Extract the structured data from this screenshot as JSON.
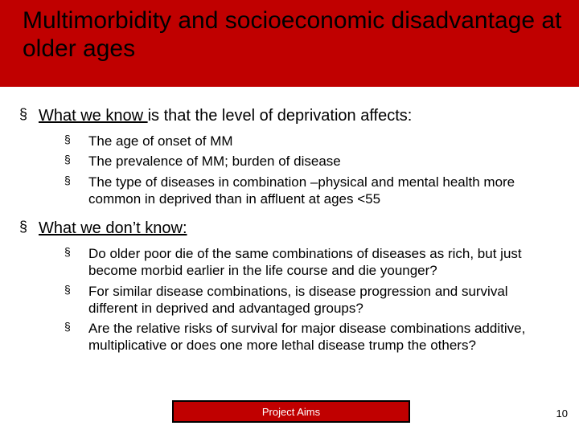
{
  "title": "Multimorbidity and socioeconomic disadvantage at older ages",
  "colors": {
    "band": "#c00000",
    "text": "#000000",
    "footer_text": "#ffffff",
    "background": "#ffffff"
  },
  "bullets": [
    {
      "lead_underlined": "What we know ",
      "tail": "is that the level of deprivation affects:",
      "sub": [
        "The age of onset of MM",
        "The prevalence of MM; burden of disease",
        "The type of diseases in combination –physical and mental health more common in deprived than in affluent at ages <55"
      ]
    },
    {
      "lead_underlined": "What we don’t know:",
      "tail": "",
      "sub": [
        "Do older poor die of the same combinations of diseases as rich, but just become morbid earlier in the life course and die younger?",
        "For similar disease combinations, is disease progression and survival different in deprived and advantaged groups?",
        "Are the relative risks of survival for major disease combinations additive, multiplicative or does one more lethal disease trump the others?"
      ]
    }
  ],
  "footer": {
    "label": "Project Aims"
  },
  "page_number": "10",
  "bullet_glyph": "§"
}
